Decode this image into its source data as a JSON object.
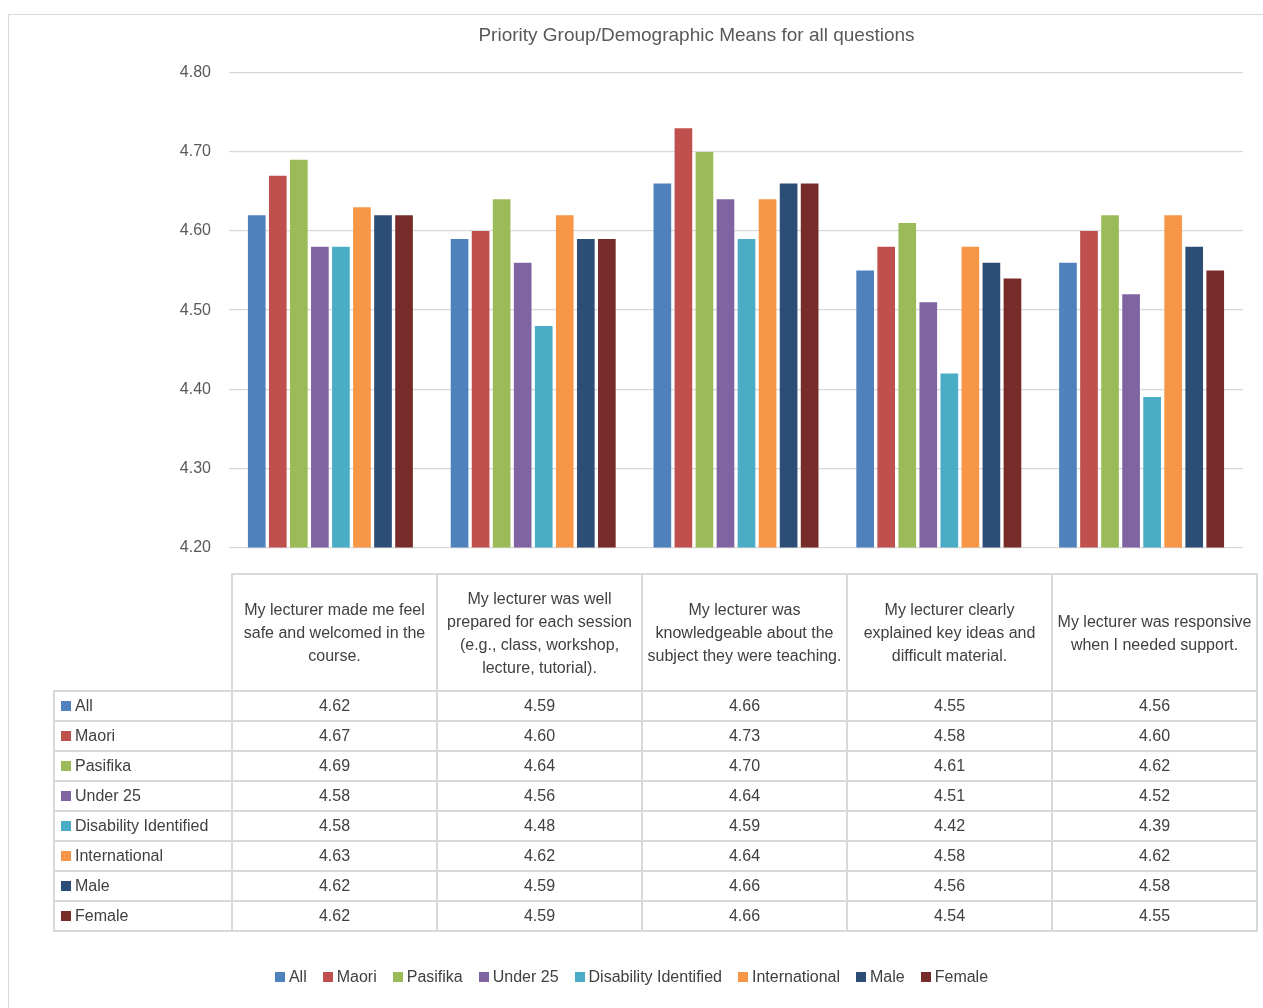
{
  "chart_data": {
    "type": "bar",
    "title": "Priority Group/Demographic Means for all questions",
    "categories": [
      "My lecturer made me feel safe and welcomed in the course.",
      "My lecturer was well prepared for each session (e.g., class, workshop, lecture, tutorial).",
      "My lecturer was knowledgeable about the subject they were teaching.",
      "My lecturer clearly explained key ideas and difficult material.",
      "My lecturer was responsive when I needed support."
    ],
    "series": [
      {
        "name": "All",
        "color": "#4f81bd",
        "values": [
          4.62,
          4.59,
          4.66,
          4.55,
          4.56
        ],
        "value_labels": [
          "4.62",
          "4.59",
          "4.66",
          "4.55",
          "4.56"
        ]
      },
      {
        "name": "Maori",
        "color": "#c0504d",
        "values": [
          4.67,
          4.6,
          4.73,
          4.58,
          4.6
        ],
        "value_labels": [
          "4.67",
          "4.60",
          "4.73",
          "4.58",
          "4.60"
        ]
      },
      {
        "name": "Pasifika",
        "color": "#9bbb59",
        "values": [
          4.69,
          4.64,
          4.7,
          4.61,
          4.62
        ],
        "value_labels": [
          "4.69",
          "4.64",
          "4.70",
          "4.61",
          "4.62"
        ]
      },
      {
        "name": "Under 25",
        "color": "#8064a2",
        "values": [
          4.58,
          4.56,
          4.64,
          4.51,
          4.52
        ],
        "value_labels": [
          "4.58",
          "4.56",
          "4.64",
          "4.51",
          "4.52"
        ]
      },
      {
        "name": "Disability Identified",
        "color": "#4bacc6",
        "values": [
          4.58,
          4.48,
          4.59,
          4.42,
          4.39
        ],
        "value_labels": [
          "4.58",
          "4.48",
          "4.59",
          "4.42",
          "4.39"
        ]
      },
      {
        "name": "International",
        "color": "#f79646",
        "values": [
          4.63,
          4.62,
          4.64,
          4.58,
          4.62
        ],
        "value_labels": [
          "4.63",
          "4.62",
          "4.64",
          "4.58",
          "4.62"
        ]
      },
      {
        "name": "Male",
        "color": "#2c4d75",
        "values": [
          4.62,
          4.59,
          4.66,
          4.56,
          4.58
        ],
        "value_labels": [
          "4.62",
          "4.59",
          "4.66",
          "4.56",
          "4.58"
        ]
      },
      {
        "name": "Female",
        "color": "#772c2a",
        "values": [
          4.62,
          4.59,
          4.66,
          4.54,
          4.55
        ],
        "value_labels": [
          "4.62",
          "4.59",
          "4.66",
          "4.54",
          "4.55"
        ]
      }
    ],
    "ylim": [
      4.2,
      4.8
    ],
    "yticks": [
      {
        "value": 4.2,
        "label": "4.20"
      },
      {
        "value": 4.3,
        "label": "4.30"
      },
      {
        "value": 4.4,
        "label": "4.40"
      },
      {
        "value": 4.5,
        "label": "4.50"
      },
      {
        "value": 4.6,
        "label": "4.60"
      },
      {
        "value": 4.7,
        "label": "4.70"
      },
      {
        "value": 4.8,
        "label": "4.80"
      }
    ],
    "grid": "y",
    "legend": "bottom"
  }
}
